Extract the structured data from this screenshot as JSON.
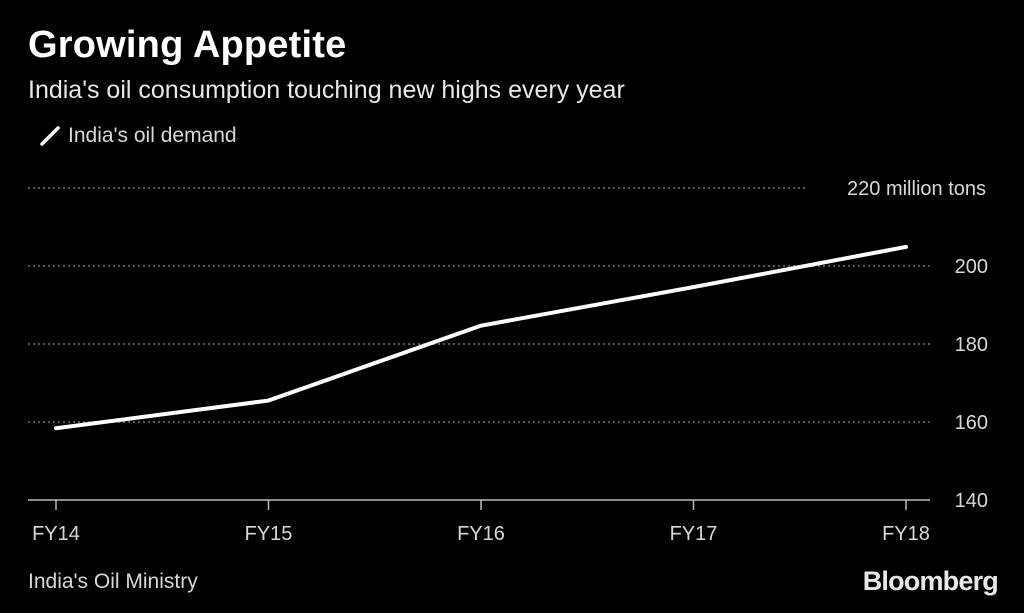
{
  "header": {
    "title": "Growing Appetite",
    "subtitle": "India's oil consumption touching new highs every year"
  },
  "footer": {
    "source": "India's Oil Ministry",
    "brand": "Bloomberg"
  },
  "colors": {
    "background": "#000000",
    "line": "#ffffff",
    "grid": "#777777",
    "axis_text": "#d8d8d8"
  },
  "chart_data": {
    "type": "line",
    "title": "Growing Appetite",
    "subtitle": "India's oil consumption touching new highs every year",
    "categories": [
      "FY14",
      "FY15",
      "FY16",
      "FY17",
      "FY18"
    ],
    "series": [
      {
        "name": "India's oil demand",
        "values": [
          158.4,
          165.5,
          184.7,
          194.6,
          204.9
        ]
      }
    ],
    "ylim": [
      140,
      220
    ],
    "yticks": [
      140,
      160,
      180,
      200,
      220
    ],
    "ytick_labels": [
      "140",
      "160",
      "180",
      "200",
      "220 million tons"
    ],
    "grid": true,
    "legend_position": "top-left",
    "xlabel": "",
    "ylabel": ""
  }
}
